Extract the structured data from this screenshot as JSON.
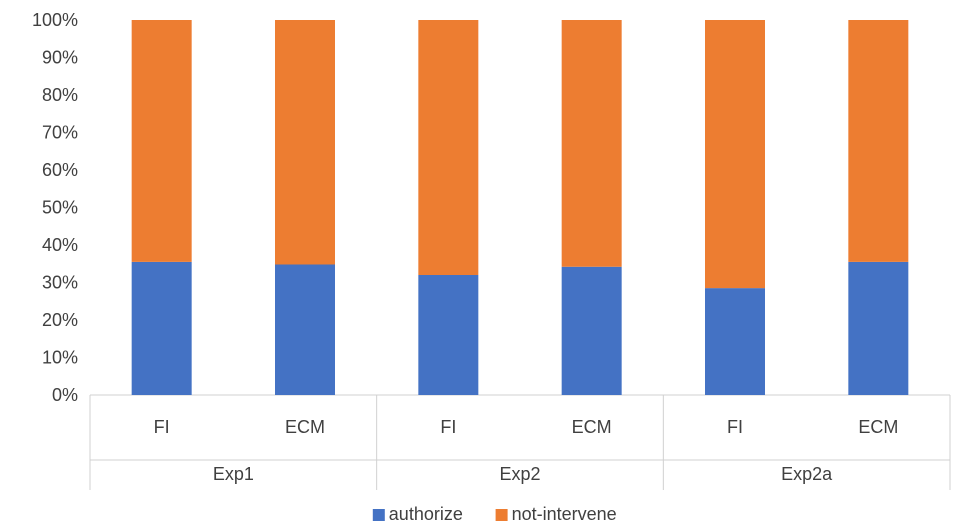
{
  "chart_data": {
    "type": "bar",
    "stacked": true,
    "percent_stacked": true,
    "groups": [
      {
        "label": "Exp1",
        "categories": [
          "FI",
          "ECM"
        ]
      },
      {
        "label": "Exp2",
        "categories": [
          "FI",
          "ECM"
        ]
      },
      {
        "label": "Exp2a",
        "categories": [
          "FI",
          "ECM"
        ]
      }
    ],
    "categories": [
      "FI",
      "ECM",
      "FI",
      "ECM",
      "FI",
      "ECM"
    ],
    "series": [
      {
        "name": "authorize",
        "color": "#4472C4",
        "values": [
          35.5,
          34.8,
          32.0,
          34.2,
          28.5,
          35.5
        ]
      },
      {
        "name": "not-intervene",
        "color": "#ED7D31",
        "values": [
          64.5,
          65.2,
          68.0,
          65.8,
          71.5,
          64.5
        ]
      }
    ],
    "yticks": [
      "0%",
      "10%",
      "20%",
      "30%",
      "40%",
      "50%",
      "60%",
      "70%",
      "80%",
      "90%",
      "100%"
    ],
    "ylim": [
      0,
      100
    ],
    "grid": false,
    "legend_position": "bottom",
    "title": "",
    "xlabel": "",
    "ylabel": ""
  }
}
